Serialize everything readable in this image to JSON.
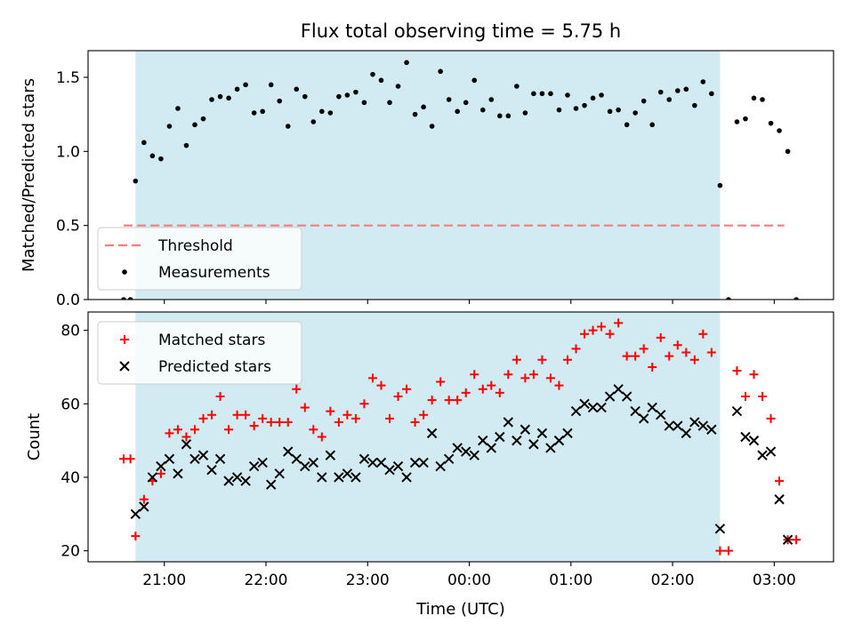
{
  "figure": {
    "title": "Flux total observing time = 5.75 h",
    "xlabel": "Time (UTC)"
  },
  "chart_data": [
    {
      "type": "scatter",
      "ylabel": "Matched/Predicted stars",
      "ylim": [
        0,
        1.68
      ],
      "yticks": [
        "0.0",
        "0.5",
        "1.0",
        "1.5"
      ],
      "xlim": [
        "20:15",
        "03:35"
      ],
      "xticks": [
        "21:00",
        "22:00",
        "23:00",
        "00:00",
        "01:00",
        "02:00",
        "03:00"
      ],
      "grid": false,
      "legend_position": "lower-left",
      "observing_window": {
        "start": "20:43",
        "end": "02:28",
        "color": "#add8e6"
      },
      "threshold": {
        "name": "Threshold",
        "value": 0.5,
        "x_start": "20:36",
        "x_end": "03:06",
        "color": "#f08080"
      },
      "series": [
        {
          "name": "Measurements",
          "color": "#000000",
          "points": [
            [
              "20:36",
              0.0
            ],
            [
              "20:40",
              0.0
            ],
            [
              "20:43",
              0.8
            ],
            [
              "20:48",
              1.06
            ],
            [
              "20:53",
              0.97
            ],
            [
              "20:58",
              0.95
            ],
            [
              "21:03",
              1.17
            ],
            [
              "21:08",
              1.29
            ],
            [
              "21:13",
              1.04
            ],
            [
              "21:18",
              1.18
            ],
            [
              "21:23",
              1.22
            ],
            [
              "21:28",
              1.35
            ],
            [
              "21:33",
              1.37
            ],
            [
              "21:38",
              1.36
            ],
            [
              "21:43",
              1.42
            ],
            [
              "21:48",
              1.45
            ],
            [
              "21:53",
              1.26
            ],
            [
              "21:58",
              1.27
            ],
            [
              "22:03",
              1.45
            ],
            [
              "22:08",
              1.34
            ],
            [
              "22:13",
              1.17
            ],
            [
              "22:18",
              1.42
            ],
            [
              "22:23",
              1.37
            ],
            [
              "22:28",
              1.2
            ],
            [
              "22:33",
              1.27
            ],
            [
              "22:38",
              1.26
            ],
            [
              "22:43",
              1.37
            ],
            [
              "22:48",
              1.38
            ],
            [
              "22:53",
              1.4
            ],
            [
              "22:58",
              1.33
            ],
            [
              "23:03",
              1.52
            ],
            [
              "23:08",
              1.48
            ],
            [
              "23:13",
              1.33
            ],
            [
              "23:18",
              1.44
            ],
            [
              "23:23",
              1.6
            ],
            [
              "23:28",
              1.25
            ],
            [
              "23:33",
              1.3
            ],
            [
              "23:38",
              1.17
            ],
            [
              "23:43",
              1.54
            ],
            [
              "23:48",
              1.35
            ],
            [
              "23:53",
              1.27
            ],
            [
              "23:58",
              1.33
            ],
            [
              "00:03",
              1.48
            ],
            [
              "00:08",
              1.28
            ],
            [
              "00:13",
              1.35
            ],
            [
              "00:18",
              1.24
            ],
            [
              "00:23",
              1.24
            ],
            [
              "00:28",
              1.44
            ],
            [
              "00:33",
              1.26
            ],
            [
              "00:38",
              1.39
            ],
            [
              "00:43",
              1.39
            ],
            [
              "00:48",
              1.39
            ],
            [
              "00:53",
              1.28
            ],
            [
              "00:58",
              1.38
            ],
            [
              "01:03",
              1.29
            ],
            [
              "01:08",
              1.31
            ],
            [
              "01:13",
              1.36
            ],
            [
              "01:18",
              1.38
            ],
            [
              "01:23",
              1.27
            ],
            [
              "01:28",
              1.28
            ],
            [
              "01:33",
              1.18
            ],
            [
              "01:38",
              1.26
            ],
            [
              "01:43",
              1.34
            ],
            [
              "01:48",
              1.18
            ],
            [
              "01:53",
              1.4
            ],
            [
              "01:58",
              1.35
            ],
            [
              "02:03",
              1.41
            ],
            [
              "02:08",
              1.42
            ],
            [
              "02:13",
              1.31
            ],
            [
              "02:18",
              1.47
            ],
            [
              "02:23",
              1.39
            ],
            [
              "02:28",
              0.77
            ],
            [
              "02:33",
              0.0
            ],
            [
              "02:38",
              1.2
            ],
            [
              "02:43",
              1.22
            ],
            [
              "02:48",
              1.36
            ],
            [
              "02:53",
              1.35
            ],
            [
              "02:58",
              1.19
            ],
            [
              "03:03",
              1.14
            ],
            [
              "03:08",
              1.0
            ],
            [
              "03:13",
              0.0
            ]
          ]
        }
      ]
    },
    {
      "type": "scatter",
      "ylabel": "Count",
      "ylim": [
        17,
        85
      ],
      "yticks": [
        "20",
        "40",
        "60",
        "80"
      ],
      "xlim": [
        "20:15",
        "03:35"
      ],
      "xticks": [
        "21:00",
        "22:00",
        "23:00",
        "00:00",
        "01:00",
        "02:00",
        "03:00"
      ],
      "grid": false,
      "legend_position": "upper-left",
      "observing_window": {
        "start": "20:43",
        "end": "02:28",
        "color": "#add8e6"
      },
      "series": [
        {
          "name": "Matched stars",
          "marker": "plus",
          "color": "#ff0000",
          "points": [
            [
              "20:36",
              45
            ],
            [
              "20:40",
              45
            ],
            [
              "20:43",
              24
            ],
            [
              "20:48",
              34
            ],
            [
              "20:53",
              39
            ],
            [
              "20:58",
              41
            ],
            [
              "21:03",
              52
            ],
            [
              "21:08",
              53
            ],
            [
              "21:13",
              51
            ],
            [
              "21:18",
              53
            ],
            [
              "21:23",
              56
            ],
            [
              "21:28",
              57
            ],
            [
              "21:33",
              62
            ],
            [
              "21:38",
              53
            ],
            [
              "21:43",
              57
            ],
            [
              "21:48",
              57
            ],
            [
              "21:53",
              54
            ],
            [
              "21:58",
              56
            ],
            [
              "22:03",
              55
            ],
            [
              "22:08",
              55
            ],
            [
              "22:13",
              55
            ],
            [
              "22:18",
              64
            ],
            [
              "22:23",
              59
            ],
            [
              "22:28",
              53
            ],
            [
              "22:33",
              51
            ],
            [
              "22:38",
              58
            ],
            [
              "22:43",
              55
            ],
            [
              "22:48",
              57
            ],
            [
              "22:53",
              56
            ],
            [
              "22:58",
              60
            ],
            [
              "23:03",
              67
            ],
            [
              "23:08",
              65
            ],
            [
              "23:13",
              56
            ],
            [
              "23:18",
              62
            ],
            [
              "23:23",
              64
            ],
            [
              "23:28",
              55
            ],
            [
              "23:33",
              57
            ],
            [
              "23:38",
              61
            ],
            [
              "23:43",
              66
            ],
            [
              "23:48",
              61
            ],
            [
              "23:53",
              61
            ],
            [
              "23:58",
              63
            ],
            [
              "00:03",
              68
            ],
            [
              "00:08",
              64
            ],
            [
              "00:13",
              65
            ],
            [
              "00:18",
              63
            ],
            [
              "00:23",
              68
            ],
            [
              "00:28",
              72
            ],
            [
              "00:33",
              67
            ],
            [
              "00:38",
              68
            ],
            [
              "00:43",
              72
            ],
            [
              "00:48",
              67
            ],
            [
              "00:53",
              65
            ],
            [
              "00:58",
              72
            ],
            [
              "01:03",
              75
            ],
            [
              "01:08",
              79
            ],
            [
              "01:13",
              80
            ],
            [
              "01:18",
              81
            ],
            [
              "01:23",
              79
            ],
            [
              "01:28",
              82
            ],
            [
              "01:33",
              73
            ],
            [
              "01:38",
              73
            ],
            [
              "01:43",
              75
            ],
            [
              "01:48",
              70
            ],
            [
              "01:53",
              78
            ],
            [
              "01:58",
              73
            ],
            [
              "02:03",
              76
            ],
            [
              "02:08",
              74
            ],
            [
              "02:13",
              72
            ],
            [
              "02:18",
              79
            ],
            [
              "02:23",
              74
            ],
            [
              "02:28",
              20
            ],
            [
              "02:33",
              20
            ],
            [
              "02:38",
              69
            ],
            [
              "02:43",
              62
            ],
            [
              "02:48",
              68
            ],
            [
              "02:53",
              62
            ],
            [
              "02:58",
              56
            ],
            [
              "03:03",
              39
            ],
            [
              "03:08",
              23
            ],
            [
              "03:13",
              23
            ]
          ]
        },
        {
          "name": "Predicted stars",
          "marker": "x",
          "color": "#000000",
          "points": [
            [
              "20:43",
              30
            ],
            [
              "20:48",
              32
            ],
            [
              "20:53",
              40
            ],
            [
              "20:58",
              43
            ],
            [
              "21:03",
              45
            ],
            [
              "21:08",
              41
            ],
            [
              "21:13",
              49
            ],
            [
              "21:18",
              45
            ],
            [
              "21:23",
              46
            ],
            [
              "21:28",
              42
            ],
            [
              "21:33",
              45
            ],
            [
              "21:38",
              39
            ],
            [
              "21:43",
              40
            ],
            [
              "21:48",
              39
            ],
            [
              "21:53",
              43
            ],
            [
              "21:58",
              44
            ],
            [
              "22:03",
              38
            ],
            [
              "22:08",
              41
            ],
            [
              "22:13",
              47
            ],
            [
              "22:18",
              45
            ],
            [
              "22:23",
              43
            ],
            [
              "22:28",
              44
            ],
            [
              "22:33",
              40
            ],
            [
              "22:38",
              46
            ],
            [
              "22:43",
              40
            ],
            [
              "22:48",
              41
            ],
            [
              "22:53",
              40
            ],
            [
              "22:58",
              45
            ],
            [
              "23:03",
              44
            ],
            [
              "23:08",
              44
            ],
            [
              "23:13",
              42
            ],
            [
              "23:18",
              43
            ],
            [
              "23:23",
              40
            ],
            [
              "23:28",
              44
            ],
            [
              "23:33",
              44
            ],
            [
              "23:38",
              52
            ],
            [
              "23:43",
              43
            ],
            [
              "23:48",
              45
            ],
            [
              "23:53",
              48
            ],
            [
              "23:58",
              47
            ],
            [
              "00:03",
              46
            ],
            [
              "00:08",
              50
            ],
            [
              "00:13",
              48
            ],
            [
              "00:18",
              51
            ],
            [
              "00:23",
              55
            ],
            [
              "00:28",
              50
            ],
            [
              "00:33",
              53
            ],
            [
              "00:38",
              49
            ],
            [
              "00:43",
              52
            ],
            [
              "00:48",
              48
            ],
            [
              "00:53",
              50
            ],
            [
              "00:58",
              52
            ],
            [
              "01:03",
              58
            ],
            [
              "01:08",
              60
            ],
            [
              "01:13",
              59
            ],
            [
              "01:18",
              59
            ],
            [
              "01:23",
              62
            ],
            [
              "01:28",
              64
            ],
            [
              "01:33",
              62
            ],
            [
              "01:38",
              58
            ],
            [
              "01:43",
              56
            ],
            [
              "01:48",
              59
            ],
            [
              "01:53",
              57
            ],
            [
              "01:58",
              54
            ],
            [
              "02:03",
              54
            ],
            [
              "02:08",
              52
            ],
            [
              "02:13",
              55
            ],
            [
              "02:18",
              54
            ],
            [
              "02:23",
              53
            ],
            [
              "02:28",
              26
            ],
            [
              "02:38",
              58
            ],
            [
              "02:43",
              51
            ],
            [
              "02:48",
              50
            ],
            [
              "02:53",
              46
            ],
            [
              "02:58",
              47
            ],
            [
              "03:03",
              34
            ],
            [
              "03:08",
              23
            ]
          ]
        }
      ]
    }
  ]
}
